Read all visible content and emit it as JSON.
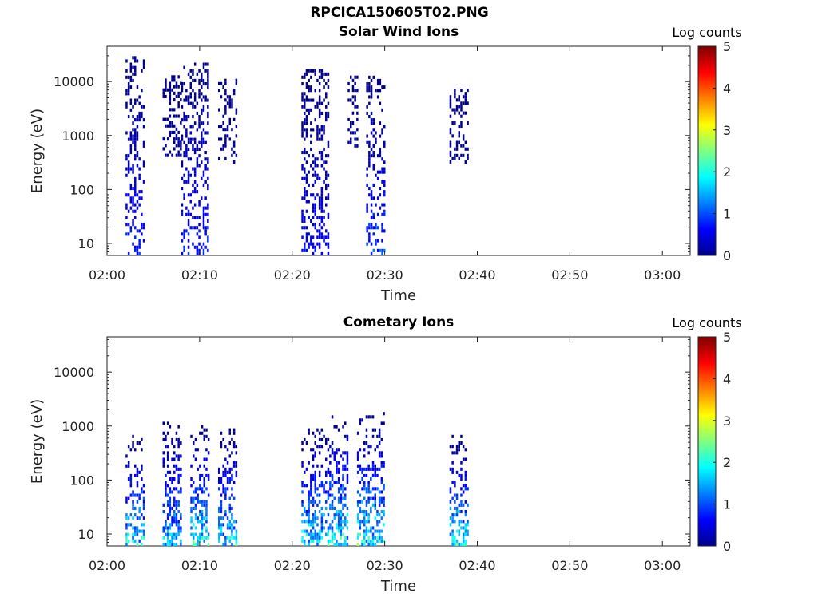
{
  "figure": {
    "title": "RPCICA150605T02.PNG"
  },
  "colorbar": {
    "label": "Log counts",
    "ticks": [
      "0",
      "1",
      "2",
      "3",
      "4",
      "5"
    ],
    "range": [
      0,
      5
    ]
  },
  "chart_data": [
    {
      "type": "heatmap",
      "title": "Solar Wind Ions",
      "xlabel": "Time",
      "ylabel": "Energy (eV)",
      "x_ticks": [
        "02:00",
        "02:10",
        "02:20",
        "02:30",
        "02:40",
        "02:50",
        "03:00"
      ],
      "x_range_minutes": [
        0,
        63
      ],
      "y_ticks": [
        "10",
        "100",
        "1000",
        "10000"
      ],
      "y_scale": "log",
      "y_range": [
        6,
        45000
      ],
      "colorbar_label": "Log counts",
      "bursts": [
        {
          "time_range": [
            "02:02",
            "02:04"
          ],
          "energy_range": [
            6,
            28000
          ],
          "peak_log_counts": 1.0
        },
        {
          "time_range": [
            "02:06",
            "02:08"
          ],
          "energy_range": [
            400,
            13000
          ],
          "peak_log_counts": 0.2
        },
        {
          "time_range": [
            "02:08",
            "02:11"
          ],
          "energy_range": [
            6,
            20000
          ],
          "peak_log_counts": 1.0
        },
        {
          "time_range": [
            "02:12",
            "02:14"
          ],
          "energy_range": [
            300,
            10000
          ],
          "peak_log_counts": 0.2
        },
        {
          "time_range": [
            "02:21",
            "02:24"
          ],
          "energy_range": [
            6,
            15000
          ],
          "peak_log_counts": 0.8
        },
        {
          "time_range": [
            "02:26",
            "02:27"
          ],
          "energy_range": [
            600,
            12000
          ],
          "peak_log_counts": 0.2
        },
        {
          "time_range": [
            "02:28",
            "02:30"
          ],
          "energy_range": [
            6,
            12000
          ],
          "peak_log_counts": 1.3
        },
        {
          "time_range": [
            "02:37",
            "02:39"
          ],
          "energy_range": [
            300,
            7000
          ],
          "peak_log_counts": 0.2
        }
      ]
    },
    {
      "type": "heatmap",
      "title": "Cometary Ions",
      "xlabel": "Time",
      "ylabel": "Energy (eV)",
      "x_ticks": [
        "02:00",
        "02:10",
        "02:20",
        "02:30",
        "02:40",
        "02:50",
        "03:00"
      ],
      "x_range_minutes": [
        0,
        63
      ],
      "y_ticks": [
        "10",
        "100",
        "1000",
        "10000"
      ],
      "y_scale": "log",
      "y_range": [
        6,
        45000
      ],
      "colorbar_label": "Log counts",
      "bursts": [
        {
          "time_range": [
            "02:02",
            "02:04"
          ],
          "energy_range": [
            6,
            600
          ],
          "peak_log_counts": 2.4
        },
        {
          "time_range": [
            "02:06",
            "02:08"
          ],
          "energy_range": [
            6,
            1500
          ],
          "peak_log_counts": 2.0
        },
        {
          "time_range": [
            "02:09",
            "02:11"
          ],
          "energy_range": [
            6,
            1000
          ],
          "peak_log_counts": 2.6
        },
        {
          "time_range": [
            "02:12",
            "02:14"
          ],
          "energy_range": [
            6,
            900
          ],
          "peak_log_counts": 2.3
        },
        {
          "time_range": [
            "02:21",
            "02:24"
          ],
          "energy_range": [
            6,
            900
          ],
          "peak_log_counts": 2.4
        },
        {
          "time_range": [
            "02:24",
            "02:26"
          ],
          "energy_range": [
            6,
            1500
          ],
          "peak_log_counts": 2.6
        },
        {
          "time_range": [
            "02:27",
            "02:30"
          ],
          "energy_range": [
            6,
            1700
          ],
          "peak_log_counts": 2.6
        },
        {
          "time_range": [
            "02:37",
            "02:39"
          ],
          "energy_range": [
            6,
            600
          ],
          "peak_log_counts": 2.6
        }
      ]
    }
  ]
}
